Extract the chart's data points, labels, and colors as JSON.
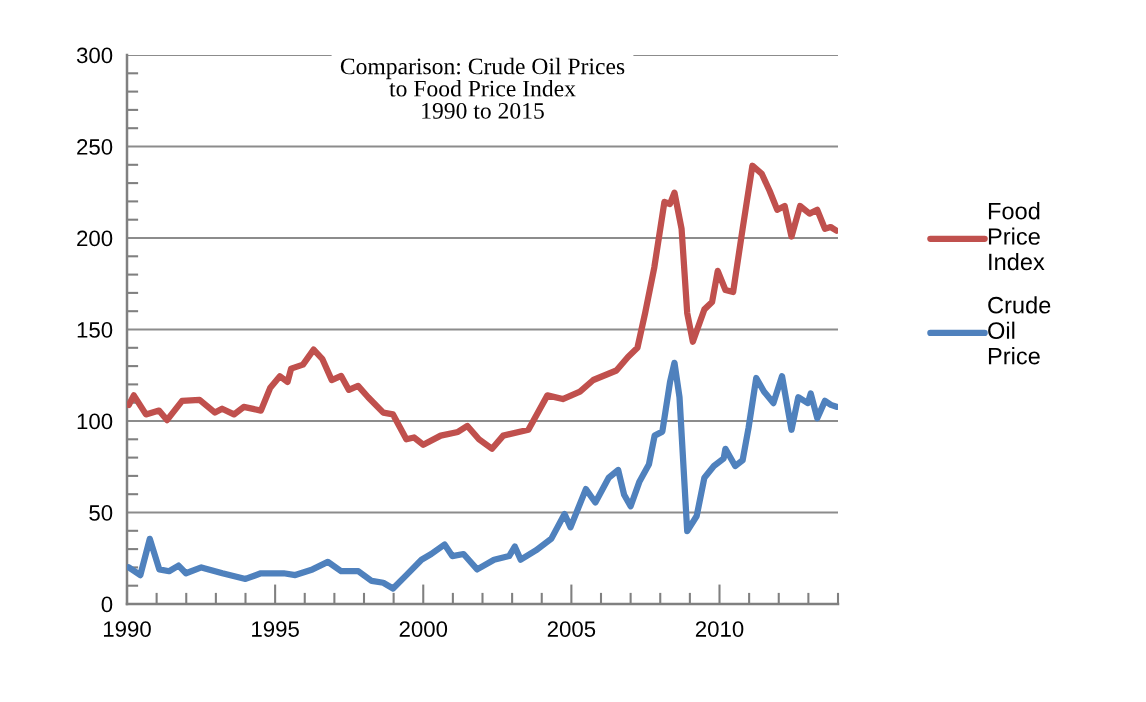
{
  "chart_data": {
    "type": "line",
    "title": "Comparison: Crude Oil Prices\nto Food Price Index\n1990 to 2015",
    "xlim": [
      1990,
      2014
    ],
    "xticks": [
      {
        "value": 1990,
        "label": "1990"
      },
      {
        "value": 1991,
        "label": null
      },
      {
        "value": 1992,
        "label": null
      },
      {
        "value": 1993,
        "label": null
      },
      {
        "value": 1994,
        "label": null
      },
      {
        "value": 1995,
        "label": "1995"
      },
      {
        "value": 1996,
        "label": null
      },
      {
        "value": 1997,
        "label": null
      },
      {
        "value": 1998,
        "label": null
      },
      {
        "value": 1999,
        "label": null
      },
      {
        "value": 2000,
        "label": "2000"
      },
      {
        "value": 2001,
        "label": null
      },
      {
        "value": 2002,
        "label": null
      },
      {
        "value": 2003,
        "label": null
      },
      {
        "value": 2004,
        "label": null
      },
      {
        "value": 2005,
        "label": "2005"
      },
      {
        "value": 2006,
        "label": null
      },
      {
        "value": 2007,
        "label": null
      },
      {
        "value": 2008,
        "label": null
      },
      {
        "value": 2009,
        "label": null
      },
      {
        "value": 2010,
        "label": "2010"
      },
      {
        "value": 2011,
        "label": null
      },
      {
        "value": 2012,
        "label": null
      },
      {
        "value": 2013,
        "label": null
      },
      {
        "value": 2014,
        "label": null
      }
    ],
    "ylim": [
      0,
      300
    ],
    "yticks": [
      0,
      {
        "value": 10,
        "label": null
      },
      {
        "value": 20,
        "label": null
      },
      {
        "value": 30,
        "label": null
      },
      {
        "value": 40,
        "label": null
      },
      50,
      {
        "value": 60,
        "label": null
      },
      {
        "value": 70,
        "label": null
      },
      {
        "value": 80,
        "label": null
      },
      {
        "value": 90,
        "label": null
      },
      100,
      {
        "value": 110,
        "label": null
      },
      {
        "value": 120,
        "label": null
      },
      {
        "value": 130,
        "label": null
      },
      {
        "value": 140,
        "label": null
      },
      150,
      {
        "value": 160,
        "label": null
      },
      {
        "value": 170,
        "label": null
      },
      {
        "value": 180,
        "label": null
      },
      {
        "value": 190,
        "label": null
      },
      200,
      {
        "value": 210,
        "label": null
      },
      {
        "value": 220,
        "label": null
      },
      {
        "value": 230,
        "label": null
      },
      {
        "value": 240,
        "label": null
      },
      250,
      {
        "value": 260,
        "label": null
      },
      {
        "value": 270,
        "label": null
      },
      {
        "value": 280,
        "label": null
      },
      {
        "value": 290,
        "label": null
      },
      300
    ],
    "grid": "y",
    "legend": "right",
    "marker": "none",
    "line_style": "solid",
    "series": [
      {
        "name": "Food Price Index",
        "color": "#c0504d",
        "x": [
          1990.06,
          1990.23,
          1990.64,
          1991.08,
          1991.35,
          1991.86,
          1992.45,
          1992.97,
          1993.21,
          1993.61,
          1993.94,
          1994.52,
          1994.83,
          1995.16,
          1995.42,
          1995.54,
          1995.94,
          1996.3,
          1996.59,
          1996.91,
          1997.23,
          1997.49,
          1997.8,
          1998.14,
          1998.65,
          1998.98,
          1999.43,
          1999.69,
          2000.0,
          2000.59,
          2001.17,
          2001.49,
          2001.88,
          2002.32,
          2002.7,
          2003.55,
          2004.19,
          2004.71,
          2005.29,
          2005.74,
          2006.52,
          2006.91,
          2007.23,
          2007.49,
          2007.8,
          2008.14,
          2008.33,
          2008.48,
          2008.72,
          2008.91,
          2009.1,
          2009.49,
          2009.75,
          2009.94,
          2010.2,
          2010.46,
          2010.78,
          2011.11,
          2011.43,
          2011.69,
          2011.95,
          2012.2,
          2012.43,
          2012.72,
          2013.04,
          2013.3,
          2013.56,
          2013.75,
          2013.95
        ],
        "values": [
          108.7,
          114,
          103.6,
          105.7,
          100.5,
          111,
          111.5,
          104.6,
          106.7,
          103.6,
          107.7,
          105.7,
          118,
          124.4,
          121.3,
          128.6,
          130.8,
          139,
          134,
          122.4,
          124.6,
          117,
          119.2,
          113,
          104.6,
          103.6,
          90,
          91,
          87,
          92,
          94,
          97.3,
          90,
          84.8,
          92,
          95.2,
          114,
          112,
          116,
          122.4,
          127.6,
          135,
          140,
          159,
          184,
          219.7,
          218.6,
          224.8,
          205,
          159,
          143.3,
          161,
          165,
          182,
          171.6,
          170.5,
          205,
          239.5,
          235,
          225.8,
          215.4,
          217.5,
          200.8,
          217.5,
          213.3,
          215.4,
          205,
          206,
          204
        ]
      },
      {
        "name": "Crude Oil Price",
        "color": "#4f81bd",
        "x": [
          1990.06,
          1990.45,
          1990.77,
          1991.09,
          1991.42,
          1991.74,
          1991.99,
          1992.51,
          1993.22,
          1994.0,
          1994.52,
          1995.29,
          1995.68,
          1996.26,
          1996.78,
          1997.23,
          1997.81,
          1998.26,
          1998.65,
          1998.98,
          1999.43,
          1999.94,
          2000.27,
          2000.72,
          2000.98,
          2001.36,
          2001.82,
          2002.39,
          2002.9,
          2003.09,
          2003.29,
          2003.8,
          2004.32,
          2004.77,
          2004.97,
          2005.49,
          2005.81,
          2006.26,
          2006.58,
          2006.78,
          2007.0,
          2007.3,
          2007.62,
          2007.81,
          2008.07,
          2008.33,
          2008.48,
          2008.65,
          2008.91,
          2009.23,
          2009.49,
          2009.81,
          2010.14,
          2010.2,
          2010.53,
          2010.78,
          2010.98,
          2011.24,
          2011.5,
          2011.82,
          2012.11,
          2012.43,
          2012.66,
          2012.98,
          2013.08,
          2013.3,
          2013.56,
          2013.76,
          2013.95
        ],
        "values": [
          20,
          15.8,
          35.6,
          18.9,
          17.9,
          21,
          16.8,
          20,
          16.8,
          13.7,
          16.8,
          16.8,
          15.8,
          18.9,
          23,
          17.9,
          17.9,
          12.6,
          11.6,
          8.5,
          15.8,
          24.2,
          27.3,
          32.5,
          26.2,
          27.3,
          18.9,
          24.2,
          26.2,
          31.4,
          24.2,
          29.3,
          35.6,
          49.2,
          41.9,
          62.8,
          55.5,
          69,
          73.2,
          59.7,
          53.4,
          67,
          76.4,
          92,
          94.2,
          121.3,
          131.8,
          113,
          39.8,
          48.1,
          69,
          75.4,
          79.5,
          84.8,
          75.4,
          78.5,
          96.2,
          123.5,
          116.1,
          109.8,
          124.5,
          95.2,
          113,
          109.8,
          115,
          101.5,
          111,
          108.8,
          107.8
        ]
      }
    ]
  }
}
